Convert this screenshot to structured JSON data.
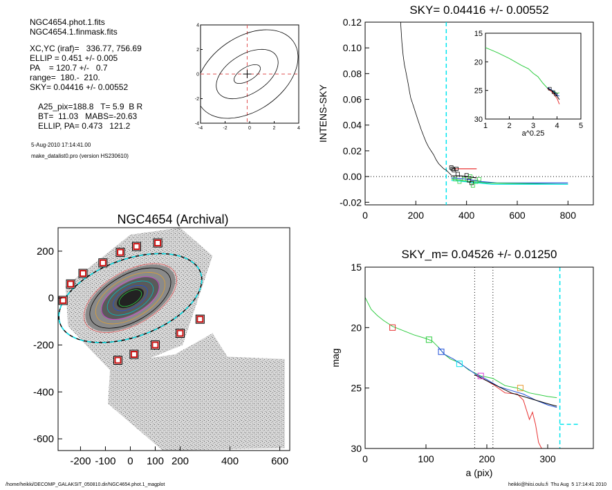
{
  "info": {
    "lines1": [
      "NGC4654.phot.1.fits",
      "NGC4654.1.finmask.fits"
    ],
    "lines2": [
      "XC,YC (iraf)=   336.77, 756.69",
      "ELLIP = 0.451 +/- 0.005",
      "PA    = 120.7 +/-   0.7",
      "range=  180.-  210.",
      "SKY= 0.04416 +/- 0.00552"
    ],
    "lines3": [
      "A25_pix=188.8   T= 5.9  B R",
      "BT=  11.03   MABS=-20.63",
      "ELLIP, PA= 0.473   121.2"
    ],
    "date_line": "5-Aug-2010 17:14:41.00",
    "program_line": "make_datalist0.pro (version HS230610)"
  },
  "footer": {
    "left": "/home/heikki/DECOMP_GALAKSIT_050810.dir/NGC4654.phot.1_magplot",
    "right": "heikki@hiisi.oulu.fi  Thu Aug  5 17:14:41 2010"
  },
  "chart_data": [
    {
      "id": "center_contour",
      "type": "contour",
      "title": "",
      "xlim": [
        -4,
        4
      ],
      "ylim": [
        -4,
        4
      ],
      "xticks": [
        -4,
        -2,
        0,
        2,
        4
      ],
      "yticks": [
        -4,
        -2,
        0,
        2,
        4
      ],
      "tick_labels": [
        "-4",
        "-2",
        "0",
        "2",
        "4"
      ],
      "center": [
        -0.2,
        0.0
      ],
      "contours": [
        {
          "rx": 1.2,
          "ry": 0.55,
          "angle": 30
        },
        {
          "rx": 2.8,
          "ry": 1.6,
          "angle": 32
        },
        {
          "rx": 4.6,
          "ry": 3.0,
          "angle": 35
        }
      ]
    },
    {
      "id": "intens_sky",
      "type": "line",
      "title": "SKY= 0.04416 +/- 0.00552",
      "xlabel": "",
      "ylabel": "INTENS-SKY",
      "xlim": [
        0,
        900
      ],
      "ylim": [
        -0.022,
        0.12
      ],
      "xticks": [
        0,
        200,
        400,
        600,
        800
      ],
      "xtick_labels": [
        "0",
        "200",
        "400",
        "600",
        "800"
      ],
      "yticks": [
        -0.02,
        0.0,
        0.02,
        0.04,
        0.06,
        0.08,
        0.1,
        0.12
      ],
      "ytick_labels": [
        "-0.02",
        "0.00",
        "0.02",
        "0.04",
        "0.06",
        "0.08",
        "0.10",
        "0.12"
      ],
      "sky_marker_x": 320,
      "profile": [
        [
          140,
          0.12
        ],
        [
          145,
          0.104
        ],
        [
          150,
          0.094
        ],
        [
          155,
          0.087
        ],
        [
          160,
          0.082
        ],
        [
          165,
          0.077
        ],
        [
          170,
          0.072
        ],
        [
          175,
          0.066
        ],
        [
          180,
          0.061
        ],
        [
          190,
          0.055
        ],
        [
          200,
          0.049
        ],
        [
          210,
          0.043
        ],
        [
          220,
          0.037
        ],
        [
          230,
          0.032
        ],
        [
          240,
          0.027
        ],
        [
          250,
          0.023
        ],
        [
          260,
          0.02
        ],
        [
          270,
          0.017
        ],
        [
          280,
          0.013
        ],
        [
          290,
          0.01
        ],
        [
          300,
          0.008
        ],
        [
          310,
          0.006
        ],
        [
          320,
          0.005
        ],
        [
          330,
          0.003
        ],
        [
          340,
          0.001
        ]
      ],
      "steps": [
        {
          "color": "#000000",
          "points": [
            [
              340,
              0.0005
            ],
            [
              380,
              0.0005
            ],
            [
              400,
              0.0
            ],
            [
              440,
              -0.001
            ]
          ]
        },
        {
          "color": "#1f4fd8",
          "points": [
            [
              340,
              -0.001
            ],
            [
              400,
              -0.002
            ],
            [
              460,
              -0.004
            ],
            [
              520,
              -0.005
            ],
            [
              800,
              -0.005
            ]
          ]
        },
        {
          "color": "#2ecc40",
          "points": [
            [
              340,
              -0.002
            ],
            [
              420,
              -0.004
            ],
            [
              480,
              -0.005
            ],
            [
              800,
              -0.006
            ]
          ]
        },
        {
          "color": "#00e5ee",
          "points": [
            [
              340,
              -0.003
            ],
            [
              500,
              -0.006
            ],
            [
              800,
              -0.006
            ]
          ]
        },
        {
          "color": "#e83030",
          "points": [
            [
              350,
              0.006
            ],
            [
              440,
              0.006
            ]
          ]
        }
      ],
      "squares_black": [
        [
          340,
          0.007
        ],
        [
          345,
          0.006
        ],
        [
          350,
          0.005
        ],
        [
          360,
          0.006
        ],
        [
          365,
          0.002
        ],
        [
          400,
          0.001
        ],
        [
          410,
          -0.003
        ],
        [
          420,
          -0.005
        ]
      ],
      "squares_green": [
        [
          355,
          -0.002
        ],
        [
          372,
          -0.004
        ],
        [
          390,
          -0.002
        ],
        [
          415,
          0.0
        ],
        [
          425,
          -0.007
        ],
        [
          438,
          -0.004
        ],
        [
          450,
          -0.002
        ]
      ],
      "inset": {
        "xlabel": "a^0.25",
        "xlim": [
          1,
          5
        ],
        "ylim": [
          15,
          30
        ],
        "xticks": [
          1,
          2,
          3,
          4,
          5
        ],
        "xtick_labels": [
          "1",
          "2",
          "3",
          "4",
          "5"
        ],
        "yticks": [
          15,
          20,
          25,
          30
        ],
        "ytick_labels": [
          "15",
          "20",
          "25",
          "30"
        ],
        "series": [
          {
            "color": "#2ecc40",
            "points": [
              [
                1.0,
                17.5
              ],
              [
                1.5,
                18.4
              ],
              [
                2.0,
                19.4
              ],
              [
                2.5,
                20.6
              ],
              [
                2.8,
                21.2
              ],
              [
                3.0,
                22.0
              ],
              [
                3.2,
                22.6
              ],
              [
                3.4,
                23.7
              ],
              [
                3.6,
                24.6
              ],
              [
                3.8,
                25.0
              ],
              [
                4.0,
                25.5
              ],
              [
                4.1,
                25.4
              ]
            ]
          },
          {
            "color": "#1f4fd8",
            "points": [
              [
                3.6,
                24.5
              ],
              [
                3.8,
                25.0
              ],
              [
                4.0,
                25.8
              ],
              [
                4.1,
                26.0
              ]
            ]
          },
          {
            "color": "#e83030",
            "points": [
              [
                3.6,
                24.7
              ],
              [
                3.8,
                25.3
              ],
              [
                4.0,
                26.4
              ],
              [
                4.1,
                27.4
              ]
            ]
          },
          {
            "color": "#000000",
            "points": [
              [
                3.6,
                24.6
              ],
              [
                3.8,
                25.1
              ],
              [
                4.0,
                26.0
              ],
              [
                4.1,
                26.6
              ]
            ]
          }
        ],
        "squares": [
          [
            3.7,
            24.7
          ],
          [
            3.85,
            25.3
          ],
          [
            3.95,
            25.7
          ]
        ]
      }
    },
    {
      "id": "galaxy_image",
      "type": "image",
      "title": "NGC4654 (Archival)",
      "xlim": [
        -290,
        640
      ],
      "ylim": [
        -650,
        300
      ],
      "xticks": [
        -200,
        -100,
        0,
        100,
        200,
        400,
        600
      ],
      "xtick_labels": [
        "-200",
        "-100",
        "0",
        "100",
        "200",
        "400",
        "600"
      ],
      "yticks": [
        200,
        0,
        -200,
        -400,
        -600
      ],
      "ytick_labels": [
        "200",
        "0",
        "-200",
        "-400",
        "-600"
      ],
      "outer_ellipse": {
        "rx": 300,
        "ry": 165,
        "angle": -20
      },
      "inner_ellipse": {
        "rx": 200,
        "ry": 110,
        "angle": -30
      },
      "boxes": [
        [
          -270,
          -10
        ],
        [
          -240,
          60
        ],
        [
          -190,
          105
        ],
        [
          -110,
          150
        ],
        [
          -40,
          195
        ],
        [
          25,
          220
        ],
        [
          110,
          235
        ],
        [
          -50,
          -265
        ],
        [
          15,
          -240
        ],
        [
          100,
          -200
        ],
        [
          200,
          -150
        ],
        [
          280,
          -90
        ]
      ]
    },
    {
      "id": "mag_profile",
      "type": "line",
      "title": "SKY_m=  0.04526 +/- 0.01250",
      "xlabel": "a (pix)",
      "ylabel": "mag",
      "xlim": [
        0,
        375
      ],
      "ylim": [
        15,
        30
      ],
      "xticks": [
        0,
        100,
        200,
        300
      ],
      "xtick_labels": [
        "0",
        "100",
        "200",
        "300"
      ],
      "yticks": [
        15,
        20,
        25,
        30
      ],
      "ytick_labels": [
        "15",
        "20",
        "25",
        "30"
      ],
      "vlines_dotted": [
        180,
        210
      ],
      "vline_sky": 320,
      "sky_level": 28.0,
      "series": [
        {
          "color": "#2ecc40",
          "points": [
            [
              0,
              17.5
            ],
            [
              10,
              18.5
            ],
            [
              20,
              19.0
            ],
            [
              30,
              19.4
            ],
            [
              45,
              19.9
            ],
            [
              60,
              20.2
            ],
            [
              80,
              20.6
            ],
            [
              100,
              20.9
            ],
            [
              110,
              21.1
            ],
            [
              120,
              21.6
            ],
            [
              130,
              22.2
            ],
            [
              140,
              22.6
            ],
            [
              155,
              22.9
            ],
            [
              170,
              23.5
            ],
            [
              190,
              24.0
            ],
            [
              200,
              24.1
            ],
            [
              210,
              24.2
            ],
            [
              230,
              24.8
            ],
            [
              250,
              25.0
            ],
            [
              270,
              25.4
            ],
            [
              300,
              25.7
            ],
            [
              315,
              25.8
            ]
          ]
        },
        {
          "color": "#1f4fd8",
          "points": [
            [
              120,
              21.6
            ],
            [
              130,
              22.2
            ],
            [
              145,
              22.6
            ],
            [
              160,
              23.1
            ],
            [
              180,
              23.8
            ],
            [
              200,
              24.3
            ],
            [
              220,
              24.9
            ],
            [
              240,
              25.2
            ],
            [
              260,
              25.5
            ],
            [
              280,
              26.0
            ],
            [
              300,
              26.4
            ],
            [
              315,
              26.6
            ]
          ]
        },
        {
          "color": "#e83030",
          "points": [
            [
              180,
              23.9
            ],
            [
              200,
              24.4
            ],
            [
              210,
              24.7
            ],
            [
              230,
              25.4
            ],
            [
              250,
              25.5
            ],
            [
              260,
              26.0
            ],
            [
              265,
              26.8
            ],
            [
              270,
              27.6
            ],
            [
              275,
              27.0
            ],
            [
              280,
              28.0
            ],
            [
              285,
              29.5
            ],
            [
              290,
              30.0
            ]
          ]
        },
        {
          "color": "#000000",
          "points": [
            [
              180,
              23.9
            ],
            [
              200,
              24.4
            ],
            [
              220,
              24.9
            ],
            [
              240,
              25.4
            ],
            [
              260,
              25.7
            ],
            [
              280,
              26.0
            ],
            [
              300,
              26.3
            ],
            [
              315,
              26.5
            ]
          ]
        }
      ],
      "squares": [
        {
          "x": 45,
          "y": 20.0,
          "color": "#e83030"
        },
        {
          "x": 105,
          "y": 21.0,
          "color": "#2ecc40"
        },
        {
          "x": 125,
          "y": 22.0,
          "color": "#1f4fd8"
        },
        {
          "x": 155,
          "y": 23.0,
          "color": "#00e5ee"
        },
        {
          "x": 190,
          "y": 24.0,
          "color": "#d83ad8"
        },
        {
          "x": 255,
          "y": 25.0,
          "color": "#e89a30"
        }
      ]
    }
  ]
}
